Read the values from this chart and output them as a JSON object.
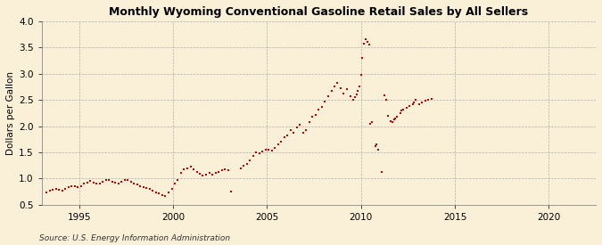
{
  "title": "Monthly Wyoming Conventional Gasoline Retail Sales by All Sellers",
  "ylabel": "Dollars per Gallon",
  "source": "Source: U.S. Energy Information Administration",
  "xlim": [
    1993.0,
    2022.5
  ],
  "ylim": [
    0.5,
    4.0
  ],
  "yticks": [
    0.5,
    1.0,
    1.5,
    2.0,
    2.5,
    3.0,
    3.5,
    4.0
  ],
  "xticks": [
    1995,
    2000,
    2005,
    2010,
    2015,
    2020
  ],
  "background_color": "#faf0d7",
  "plot_bg_color": "#faf0d7",
  "dot_color": "#cc0000",
  "dot_size": 3.5,
  "data": [
    [
      1993.25,
      0.73
    ],
    [
      1993.42,
      0.76
    ],
    [
      1993.58,
      0.78
    ],
    [
      1993.75,
      0.8
    ],
    [
      1993.92,
      0.78
    ],
    [
      1994.08,
      0.76
    ],
    [
      1994.25,
      0.8
    ],
    [
      1994.42,
      0.84
    ],
    [
      1994.58,
      0.86
    ],
    [
      1994.75,
      0.85
    ],
    [
      1994.92,
      0.84
    ],
    [
      1995.08,
      0.85
    ],
    [
      1995.25,
      0.9
    ],
    [
      1995.42,
      0.92
    ],
    [
      1995.58,
      0.96
    ],
    [
      1995.75,
      0.92
    ],
    [
      1995.92,
      0.9
    ],
    [
      1996.08,
      0.91
    ],
    [
      1996.25,
      0.94
    ],
    [
      1996.42,
      0.97
    ],
    [
      1996.58,
      0.98
    ],
    [
      1996.75,
      0.94
    ],
    [
      1996.92,
      0.92
    ],
    [
      1997.08,
      0.91
    ],
    [
      1997.25,
      0.94
    ],
    [
      1997.42,
      0.97
    ],
    [
      1997.58,
      0.97
    ],
    [
      1997.75,
      0.94
    ],
    [
      1997.92,
      0.91
    ],
    [
      1998.08,
      0.89
    ],
    [
      1998.25,
      0.85
    ],
    [
      1998.42,
      0.83
    ],
    [
      1998.58,
      0.82
    ],
    [
      1998.75,
      0.8
    ],
    [
      1998.92,
      0.77
    ],
    [
      1999.08,
      0.74
    ],
    [
      1999.25,
      0.71
    ],
    [
      1999.42,
      0.69
    ],
    [
      1999.58,
      0.66
    ],
    [
      1999.75,
      0.73
    ],
    [
      1999.92,
      0.8
    ],
    [
      2000.08,
      0.9
    ],
    [
      2000.25,
      0.98
    ],
    [
      2000.42,
      1.1
    ],
    [
      2000.58,
      1.18
    ],
    [
      2000.75,
      1.2
    ],
    [
      2000.92,
      1.22
    ],
    [
      2001.08,
      1.18
    ],
    [
      2001.25,
      1.12
    ],
    [
      2001.42,
      1.09
    ],
    [
      2001.58,
      1.06
    ],
    [
      2001.75,
      1.08
    ],
    [
      2001.92,
      1.1
    ],
    [
      2002.08,
      1.07
    ],
    [
      2002.25,
      1.1
    ],
    [
      2002.42,
      1.13
    ],
    [
      2002.58,
      1.16
    ],
    [
      2002.75,
      1.18
    ],
    [
      2002.92,
      1.16
    ],
    [
      2003.08,
      0.75
    ],
    [
      2003.58,
      1.2
    ],
    [
      2003.75,
      1.24
    ],
    [
      2003.92,
      1.28
    ],
    [
      2004.08,
      1.35
    ],
    [
      2004.25,
      1.43
    ],
    [
      2004.42,
      1.5
    ],
    [
      2004.58,
      1.48
    ],
    [
      2004.75,
      1.52
    ],
    [
      2004.92,
      1.55
    ],
    [
      2005.08,
      1.55
    ],
    [
      2005.25,
      1.53
    ],
    [
      2005.42,
      1.58
    ],
    [
      2005.58,
      1.65
    ],
    [
      2005.75,
      1.7
    ],
    [
      2005.92,
      1.78
    ],
    [
      2006.08,
      1.82
    ],
    [
      2006.25,
      1.92
    ],
    [
      2006.42,
      1.87
    ],
    [
      2006.58,
      1.97
    ],
    [
      2006.75,
      2.02
    ],
    [
      2006.92,
      1.87
    ],
    [
      2007.08,
      1.92
    ],
    [
      2007.25,
      2.08
    ],
    [
      2007.42,
      2.18
    ],
    [
      2007.58,
      2.22
    ],
    [
      2007.75,
      2.32
    ],
    [
      2007.92,
      2.37
    ],
    [
      2008.08,
      2.47
    ],
    [
      2008.25,
      2.57
    ],
    [
      2008.42,
      2.68
    ],
    [
      2008.58,
      2.75
    ],
    [
      2008.75,
      2.82
    ],
    [
      2008.92,
      2.72
    ],
    [
      2009.08,
      2.62
    ],
    [
      2009.25,
      2.7
    ],
    [
      2009.42,
      2.57
    ],
    [
      2009.58,
      2.5
    ],
    [
      2009.67,
      2.55
    ],
    [
      2009.75,
      2.6
    ],
    [
      2009.83,
      2.68
    ],
    [
      2009.92,
      2.75
    ],
    [
      2010.0,
      2.98
    ],
    [
      2010.08,
      3.3
    ],
    [
      2010.17,
      3.58
    ],
    [
      2010.25,
      3.65
    ],
    [
      2010.33,
      3.6
    ],
    [
      2010.42,
      3.55
    ],
    [
      2010.5,
      2.05
    ],
    [
      2010.58,
      2.08
    ],
    [
      2010.75,
      1.62
    ],
    [
      2010.83,
      1.65
    ],
    [
      2010.92,
      1.55
    ],
    [
      2011.08,
      1.12
    ],
    [
      2011.25,
      2.58
    ],
    [
      2011.33,
      2.5
    ],
    [
      2011.42,
      2.2
    ],
    [
      2011.58,
      2.1
    ],
    [
      2011.67,
      2.08
    ],
    [
      2011.75,
      2.12
    ],
    [
      2011.83,
      2.15
    ],
    [
      2011.92,
      2.18
    ],
    [
      2012.08,
      2.25
    ],
    [
      2012.17,
      2.3
    ],
    [
      2012.25,
      2.32
    ],
    [
      2012.42,
      2.35
    ],
    [
      2012.58,
      2.38
    ],
    [
      2012.75,
      2.42
    ],
    [
      2012.83,
      2.45
    ],
    [
      2012.92,
      2.5
    ],
    [
      2013.08,
      2.42
    ],
    [
      2013.25,
      2.45
    ],
    [
      2013.42,
      2.48
    ],
    [
      2013.58,
      2.5
    ],
    [
      2013.75,
      2.52
    ]
  ]
}
